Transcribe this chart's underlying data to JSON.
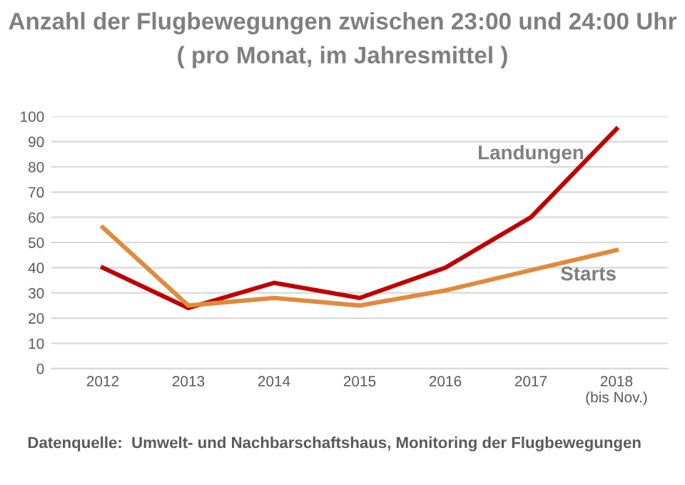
{
  "chart_data": {
    "type": "line",
    "title": "Anzahl der Flugbewegungen zwischen 23:00 und 24:00 Uhr",
    "subtitle": "( pro Monat, im Jahresmittel )",
    "categories": [
      "2012",
      "2013",
      "2014",
      "2015",
      "2016",
      "2017",
      "2018\n(bis Nov.)"
    ],
    "series": [
      {
        "name": "Landungen",
        "color": "#c00000",
        "values": [
          40,
          24,
          34,
          28,
          40,
          60,
          95
        ]
      },
      {
        "name": "Starts",
        "color": "#e08a3c",
        "values": [
          56,
          25,
          28,
          25,
          31,
          39,
          47
        ]
      }
    ],
    "ylim": [
      0,
      100
    ],
    "yticks": [
      0,
      10,
      20,
      30,
      40,
      50,
      60,
      70,
      80,
      90,
      100
    ],
    "grid": "y",
    "legend": false,
    "marker": "none",
    "line_style": "solid",
    "annotations": [
      "Datenquelle:  Umwelt- und Nachbarschaftshaus, Monitoring der Flugbewegungen"
    ]
  }
}
